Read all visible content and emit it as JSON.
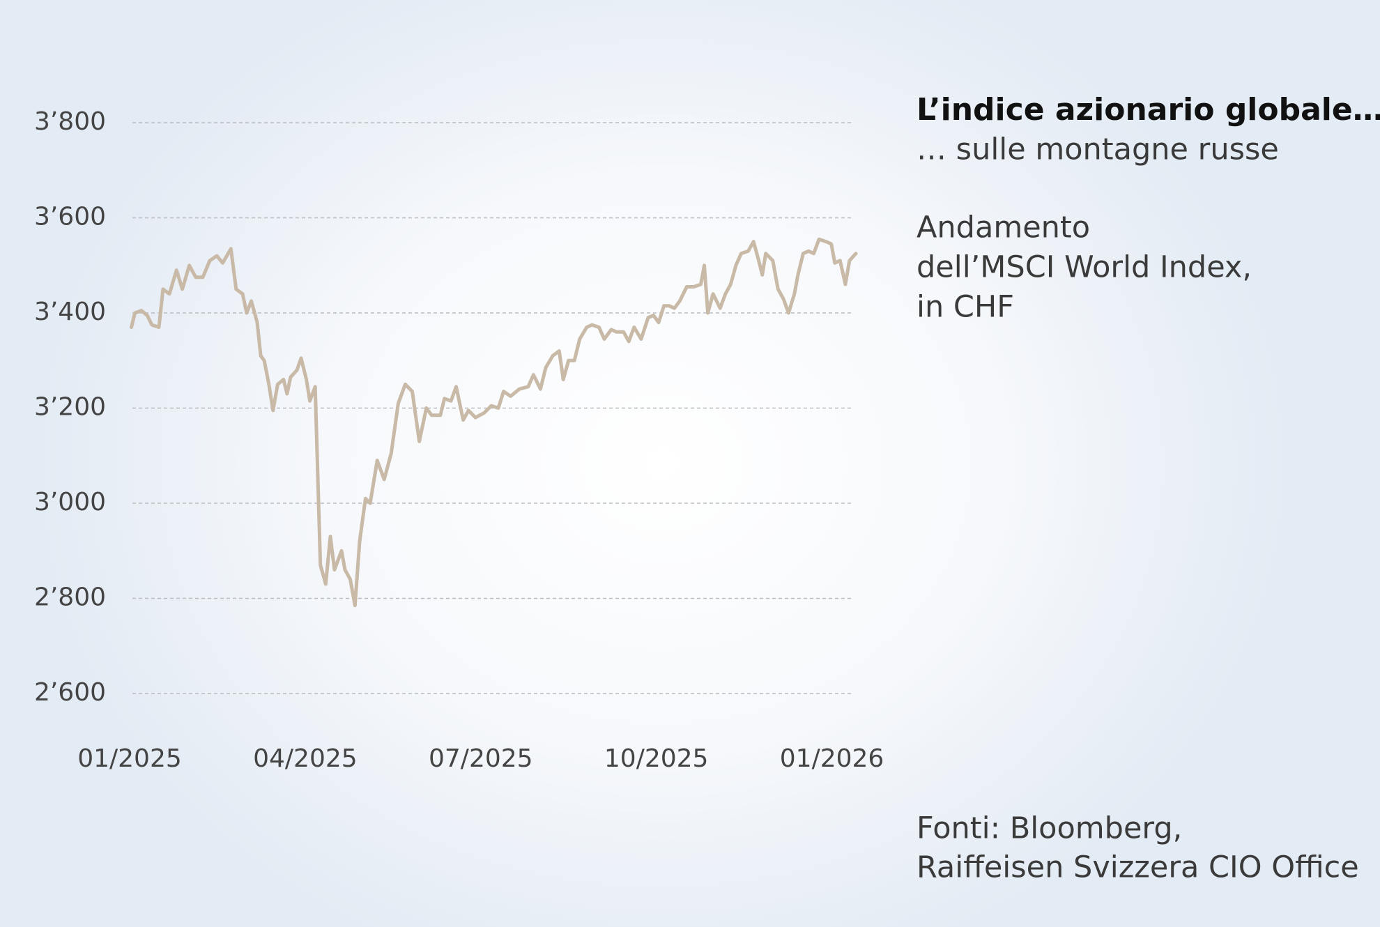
{
  "chart_data": {
    "type": "line",
    "title": "L’indice azionario globale…",
    "subtitle": "… sulle montagne russe",
    "description": [
      "Andamento",
      "dell’MSCI World Index,",
      "in CHF"
    ],
    "source": [
      "Fonti: Bloomberg,",
      "Raiffeisen Svizzera CIO Office"
    ],
    "color": "#c9b9a7",
    "grid": true,
    "xlim": [
      0,
      12.41
    ],
    "ylim": [
      2600,
      3800
    ],
    "xticks": [
      {
        "value": 0,
        "label": "01/2025"
      },
      {
        "value": 3,
        "label": "04/2025"
      },
      {
        "value": 6,
        "label": "07/2025"
      },
      {
        "value": 9,
        "label": "10/2025"
      },
      {
        "value": 12,
        "label": "01/2026"
      }
    ],
    "yticks": [
      {
        "value": 2600,
        "label": "2’600"
      },
      {
        "value": 2800,
        "label": "2’800"
      },
      {
        "value": 3000,
        "label": "3’000"
      },
      {
        "value": 3200,
        "label": "3’200"
      },
      {
        "value": 3400,
        "label": "3’400"
      },
      {
        "value": 3600,
        "label": "3’600"
      },
      {
        "value": 3800,
        "label": "3’800"
      }
    ],
    "x": [
      0.03,
      0.09,
      0.2,
      0.3,
      0.38,
      0.5,
      0.57,
      0.68,
      0.8,
      0.9,
      1.02,
      1.13,
      1.25,
      1.37,
      1.49,
      1.59,
      1.73,
      1.82,
      1.93,
      2.0,
      2.08,
      2.18,
      2.24,
      2.3,
      2.38,
      2.45,
      2.53,
      2.63,
      2.69,
      2.75,
      2.86,
      2.93,
      3.02,
      3.08,
      3.17,
      3.26,
      3.35,
      3.43,
      3.5,
      3.62,
      3.68,
      3.77,
      3.85,
      3.93,
      4.03,
      4.11,
      4.23,
      4.35,
      4.47,
      4.59,
      4.71,
      4.83,
      4.95,
      5.07,
      5.16,
      5.31,
      5.38,
      5.49,
      5.58,
      5.7,
      5.79,
      5.91,
      6.06,
      6.18,
      6.3,
      6.39,
      6.51,
      6.66,
      6.81,
      6.9,
      7.02,
      7.11,
      7.23,
      7.34,
      7.41,
      7.5,
      7.6,
      7.69,
      7.81,
      7.9,
      8.02,
      8.11,
      8.23,
      8.32,
      8.44,
      8.53,
      8.62,
      8.74,
      8.86,
      8.95,
      9.04,
      9.13,
      9.22,
      9.31,
      9.4,
      9.52,
      9.64,
      9.76,
      9.82,
      9.88,
      9.97,
      10.09,
      10.18,
      10.27,
      10.36,
      10.45,
      10.57,
      10.66,
      10.75,
      10.81,
      10.87,
      10.99,
      11.08,
      11.17,
      11.26,
      11.36,
      11.42,
      11.51,
      11.6,
      11.69,
      11.78,
      11.9,
      11.99,
      12.05,
      12.14,
      12.23,
      12.3,
      12.41
    ],
    "values": [
      3370,
      3400,
      3405,
      3395,
      3375,
      3370,
      3450,
      3440,
      3490,
      3450,
      3500,
      3475,
      3475,
      3510,
      3520,
      3505,
      3535,
      3450,
      3440,
      3400,
      3425,
      3380,
      3310,
      3300,
      3250,
      3195,
      3250,
      3260,
      3230,
      3265,
      3280,
      3305,
      3260,
      3215,
      3245,
      2870,
      2830,
      2930,
      2860,
      2900,
      2860,
      2840,
      2785,
      2920,
      3010,
      3000,
      3090,
      3050,
      3105,
      3210,
      3250,
      3235,
      3130,
      3200,
      3185,
      3185,
      3220,
      3215,
      3245,
      3175,
      3195,
      3180,
      3190,
      3205,
      3200,
      3235,
      3225,
      3240,
      3245,
      3270,
      3240,
      3285,
      3310,
      3320,
      3260,
      3300,
      3300,
      3345,
      3370,
      3375,
      3370,
      3345,
      3365,
      3360,
      3360,
      3340,
      3370,
      3345,
      3390,
      3395,
      3380,
      3415,
      3415,
      3410,
      3425,
      3455,
      3455,
      3460,
      3500,
      3400,
      3440,
      3410,
      3440,
      3460,
      3500,
      3525,
      3530,
      3550,
      3510,
      3480,
      3525,
      3510,
      3450,
      3430,
      3400,
      3440,
      3480,
      3525,
      3530,
      3525,
      3555,
      3550,
      3545,
      3505,
      3510,
      3460,
      3510,
      3525
    ]
  }
}
